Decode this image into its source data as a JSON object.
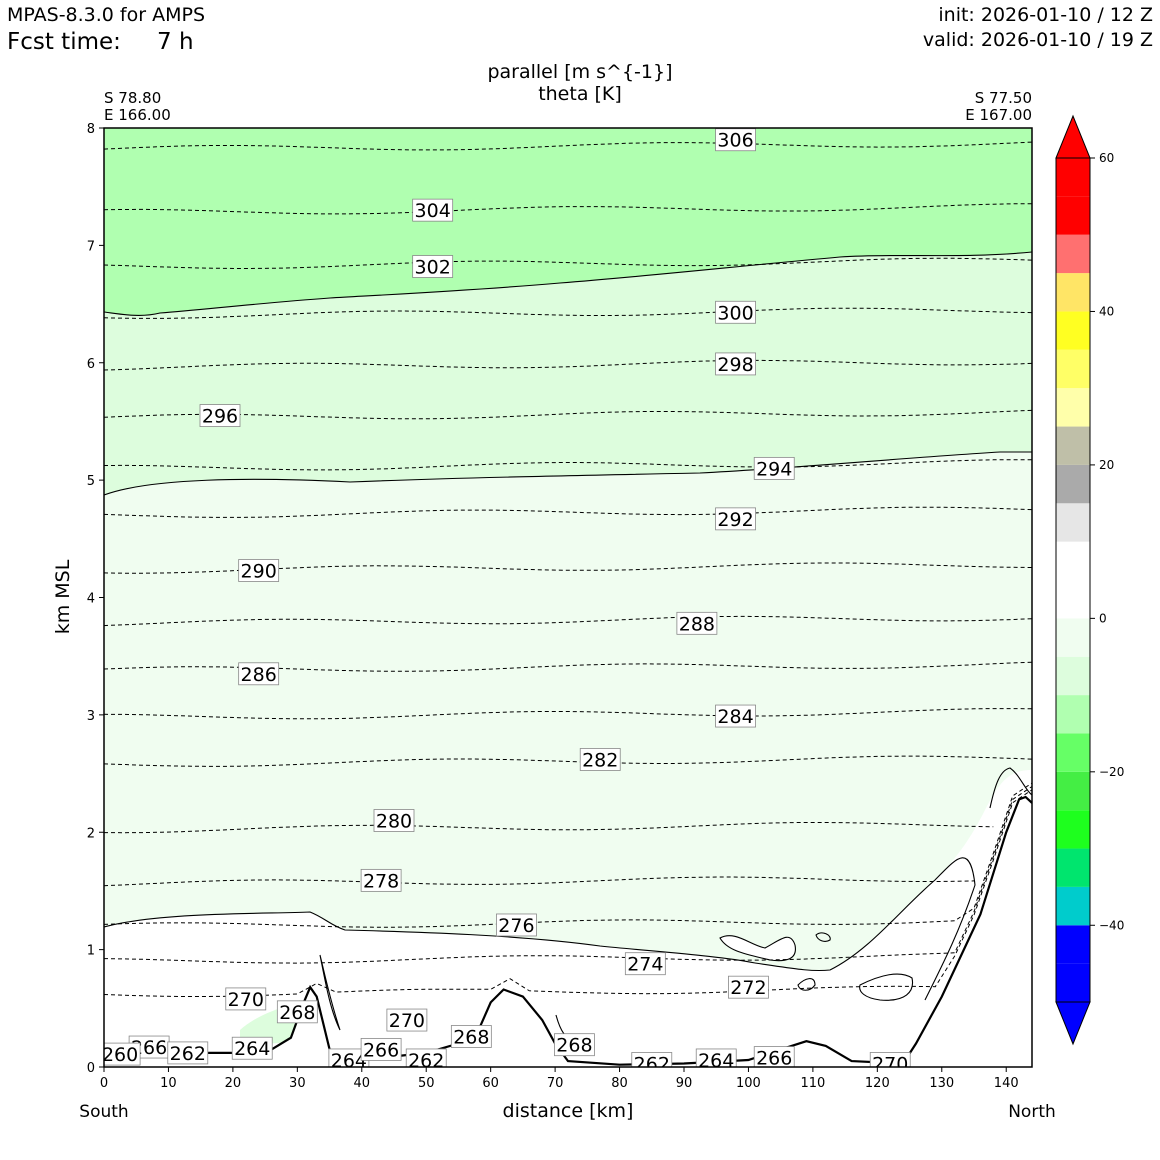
{
  "header": {
    "model": "MPAS-8.3.0 for AMPS",
    "fcst_label": "Fcst time:",
    "fcst_value": "7 h",
    "init": "init: 2026-01-10 / 12 Z",
    "valid": "valid: 2026-01-10 / 19 Z"
  },
  "chart_data": {
    "type": "cross-section",
    "title_line1": "parallel [m s^{-1}]",
    "title_line2": "theta [K]",
    "left_point": {
      "lat": "S 78.80",
      "lon": "E 166.00"
    },
    "right_point": {
      "lat": "S 77.50",
      "lon": "E 167.00"
    },
    "xlabel": "distance [km]",
    "ylabel": "km MSL",
    "x_end_left": "South",
    "x_end_right": "North",
    "xlim": [
      0,
      144
    ],
    "ylim": [
      0,
      8
    ],
    "xticks": [
      "0",
      "10",
      "20",
      "30",
      "40",
      "50",
      "60",
      "70",
      "80",
      "90",
      "100",
      "110",
      "120",
      "130",
      "140"
    ],
    "yticks": [
      "0",
      "1",
      "2",
      "3",
      "4",
      "5",
      "6",
      "7",
      "8"
    ],
    "colorbar": {
      "ticks": [
        "60",
        "40",
        "20",
        "0",
        "−20",
        "−40"
      ],
      "tick_values": [
        60,
        40,
        20,
        0,
        -20,
        -40
      ],
      "range": [
        -50,
        60
      ],
      "bins": [
        {
          "from": -50,
          "to": -45,
          "color": "#0000ff"
        },
        {
          "from": -45,
          "to": -40,
          "color": "#0000ff"
        },
        {
          "from": -40,
          "to": -35,
          "color": "#00cccc"
        },
        {
          "from": -35,
          "to": -30,
          "color": "#00e56e"
        },
        {
          "from": -30,
          "to": -25,
          "color": "#1eff1e"
        },
        {
          "from": -25,
          "to": -20,
          "color": "#44ee44"
        },
        {
          "from": -20,
          "to": -15,
          "color": "#66ff66"
        },
        {
          "from": -15,
          "to": -10,
          "color": "#b0ffb0"
        },
        {
          "from": -10,
          "to": -5,
          "color": "#ddfddd"
        },
        {
          "from": -5,
          "to": 0,
          "color": "#f0fdf0"
        },
        {
          "from": 0,
          "to": 5,
          "color": "#ffffff"
        },
        {
          "from": 5,
          "to": 10,
          "color": "#ffffff"
        },
        {
          "from": 10,
          "to": 15,
          "color": "#e6e6e6"
        },
        {
          "from": 15,
          "to": 20,
          "color": "#aaaaaa"
        },
        {
          "from": 20,
          "to": 25,
          "color": "#bfbfa8"
        },
        {
          "from": 25,
          "to": 30,
          "color": "#ffffaa"
        },
        {
          "from": 30,
          "to": 35,
          "color": "#ffff66"
        },
        {
          "from": 35,
          "to": 40,
          "color": "#ffff22"
        },
        {
          "from": 40,
          "to": 45,
          "color": "#ffe566"
        },
        {
          "from": 45,
          "to": 50,
          "color": "#ff7070"
        },
        {
          "from": 50,
          "to": 55,
          "color": "#ff0000"
        },
        {
          "from": 55,
          "to": 60,
          "color": "#ff0000"
        }
      ],
      "over_color": "#ff0000",
      "under_color": "#0000ff"
    },
    "fill_regions": [
      {
        "name": "parallel -15 to -10",
        "color": "#b0ffb0"
      },
      {
        "name": "parallel -10 to -5",
        "color": "#ddfddd"
      },
      {
        "name": "parallel -5 to 0",
        "color": "#f0fdf0"
      }
    ],
    "theta_levels": [
      {
        "label": "306",
        "km": 7.82,
        "lx": 98,
        "ly": 7.9
      },
      {
        "label": "304",
        "km": 7.28,
        "lx": 51,
        "ly": 7.3
      },
      {
        "label": "302",
        "km": 6.82,
        "lx": 51,
        "ly": 6.82
      },
      {
        "label": "300",
        "km": 6.4,
        "lx": 98,
        "ly": 6.43
      },
      {
        "label": "298",
        "km": 5.96,
        "lx": 98,
        "ly": 5.99
      },
      {
        "label": "296",
        "km": 5.53,
        "lx": 18,
        "ly": 5.55
      },
      {
        "label": "294",
        "km": 5.1,
        "lx": 104,
        "ly": 5.1
      },
      {
        "label": "292",
        "km": 4.7,
        "lx": 98,
        "ly": 4.67
      },
      {
        "label": "290",
        "km": 4.23,
        "lx": 24,
        "ly": 4.23
      },
      {
        "label": "288",
        "km": 3.78,
        "lx": 92,
        "ly": 3.78
      },
      {
        "label": "286",
        "km": 3.38,
        "lx": 24,
        "ly": 3.35
      },
      {
        "label": "284",
        "km": 2.98,
        "lx": 98,
        "ly": 2.99
      },
      {
        "label": "282",
        "km": 2.58,
        "lx": 77,
        "ly": 2.62
      },
      {
        "label": "280",
        "km": 2.02,
        "lx": 45,
        "ly": 2.1
      },
      {
        "label": "278",
        "km": 1.56,
        "lx": 43,
        "ly": 1.59
      },
      {
        "label": "276",
        "km": 1.2,
        "lx": 64,
        "ly": 1.21
      },
      {
        "label": "274",
        "km": 0.9,
        "lx": 84,
        "ly": 0.88
      },
      {
        "label": "272",
        "km": 0.62,
        "lx": 100,
        "ly": 0.68
      },
      {
        "label": "270",
        "km": 0.45,
        "lx": 22,
        "ly": 0.58
      },
      {
        "label": "268",
        "km": 0.3,
        "lx": 30,
        "ly": 0.47
      },
      {
        "label": "270",
        "km": 0.4,
        "lx": 47,
        "ly": 0.4
      },
      {
        "label": "268",
        "km": 0.25,
        "lx": 57,
        "ly": 0.26
      },
      {
        "label": "268",
        "km": 0.18,
        "lx": 73,
        "ly": 0.19
      },
      {
        "label": "266",
        "km": 0.16,
        "lx": 7,
        "ly": 0.17
      },
      {
        "label": "262",
        "km": 0.12,
        "lx": 13,
        "ly": 0.12
      },
      {
        "label": "264",
        "km": 0.15,
        "lx": 23,
        "ly": 0.16
      },
      {
        "label": "260",
        "km": 0.1,
        "lx": 2.5,
        "ly": 0.11
      },
      {
        "label": "264",
        "km": 0.06,
        "lx": 38,
        "ly": 0.06
      },
      {
        "label": "266",
        "km": 0.14,
        "lx": 43,
        "ly": 0.15
      },
      {
        "label": "262",
        "km": 0.06,
        "lx": 50,
        "ly": 0.06
      },
      {
        "label": "262",
        "km": 0.03,
        "lx": 85,
        "ly": 0.03
      },
      {
        "label": "264",
        "km": 0.06,
        "lx": 95,
        "ly": 0.06
      },
      {
        "label": "266",
        "km": 0.08,
        "lx": 104,
        "ly": 0.08
      },
      {
        "label": "270",
        "km": 0.03,
        "lx": 122,
        "ly": 0.03
      }
    ],
    "terrain_km": [
      [
        0,
        0.12
      ],
      [
        10,
        0.12
      ],
      [
        20,
        0.12
      ],
      [
        26,
        0.15
      ],
      [
        29,
        0.25
      ],
      [
        31,
        0.55
      ],
      [
        32,
        0.68
      ],
      [
        33,
        0.6
      ],
      [
        35,
        0.15
      ],
      [
        36,
        0.06
      ],
      [
        40,
        0.06
      ],
      [
        50,
        0.12
      ],
      [
        55,
        0.2
      ],
      [
        58,
        0.3
      ],
      [
        60,
        0.55
      ],
      [
        62,
        0.66
      ],
      [
        65,
        0.6
      ],
      [
        68,
        0.4
      ],
      [
        70,
        0.2
      ],
      [
        72,
        0.05
      ],
      [
        80,
        0.02
      ],
      [
        90,
        0.03
      ],
      [
        100,
        0.06
      ],
      [
        105,
        0.15
      ],
      [
        109,
        0.22
      ],
      [
        112,
        0.18
      ],
      [
        116,
        0.05
      ],
      [
        124,
        0.03
      ],
      [
        126,
        0.2
      ],
      [
        130,
        0.6
      ],
      [
        133,
        0.95
      ],
      [
        136,
        1.3
      ],
      [
        138,
        1.65
      ],
      [
        140,
        2.0
      ],
      [
        142,
        2.28
      ],
      [
        143,
        2.3
      ],
      [
        144,
        2.25
      ]
    ]
  }
}
